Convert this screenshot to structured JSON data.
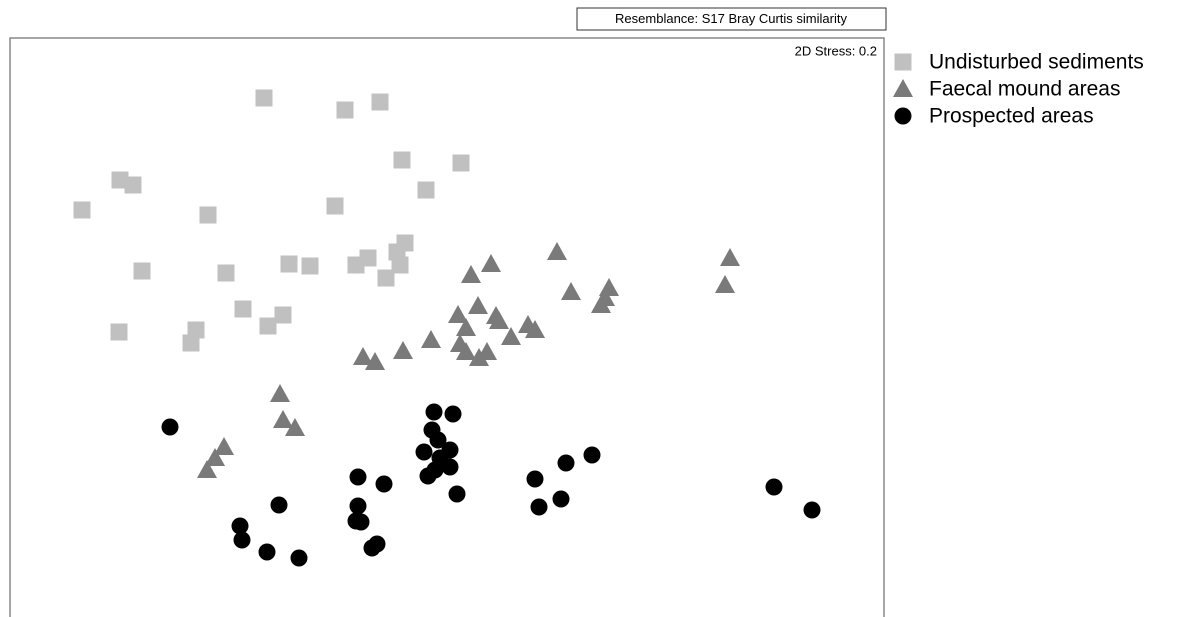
{
  "chart_data": {
    "type": "scatter",
    "annotations": [
      "Resemblance: S17 Bray Curtis similarity",
      "2D Stress: 0.2"
    ],
    "xlim": [
      0,
      874
    ],
    "ylim": [
      0,
      579
    ],
    "series": [
      {
        "name": "Undisturbed sediments",
        "color": "#c0c0c0",
        "marker": "square",
        "x": [
          254,
          335,
          370,
          110,
          123,
          72,
          198,
          392,
          451,
          416,
          325,
          395,
          387,
          358,
          346,
          390,
          279,
          300,
          376,
          132,
          216,
          233,
          273,
          258,
          186,
          181,
          109
        ],
        "values": [
          519,
          507,
          515,
          437,
          432,
          407,
          402,
          457,
          454,
          427,
          411,
          374,
          365,
          359,
          352,
          352,
          353,
          351,
          339,
          346,
          344,
          308,
          302,
          291,
          287,
          274,
          285
        ]
      },
      {
        "name": "Faecal mound areas",
        "color": "#7a7a7a",
        "marker": "triangle",
        "x": [
          547,
          481,
          461,
          720,
          715,
          561,
          599,
          595,
          591,
          468,
          448,
          486,
          456,
          489,
          518,
          525,
          501,
          421,
          393,
          353,
          365,
          450,
          477,
          456,
          469,
          270,
          273,
          285,
          214,
          205,
          197
        ],
        "values": [
          365,
          353,
          342,
          359,
          332,
          325,
          329,
          319,
          312,
          311,
          302,
          301,
          289,
          296,
          292,
          287,
          280,
          277,
          266,
          260,
          255,
          273,
          265,
          265,
          259,
          223,
          197,
          189,
          170,
          159,
          147
        ]
      },
      {
        "name": "Prospected areas",
        "color": "#000000",
        "marker": "circle",
        "x": [
          160,
          424,
          443,
          422,
          428,
          440,
          414,
          430,
          440,
          418,
          425,
          348,
          374,
          447,
          525,
          556,
          582,
          551,
          529,
          764,
          802,
          269,
          348,
          346,
          351,
          230,
          232,
          257,
          289,
          362,
          367
        ],
        "values": [
          190,
          205,
          203,
          187,
          177,
          167,
          165,
          159,
          150,
          141,
          147,
          140,
          133,
          123,
          138,
          154,
          162,
          118,
          110,
          130,
          107,
          112,
          111,
          96,
          95,
          91,
          77,
          65,
          59,
          69,
          73
        ]
      }
    ]
  }
}
